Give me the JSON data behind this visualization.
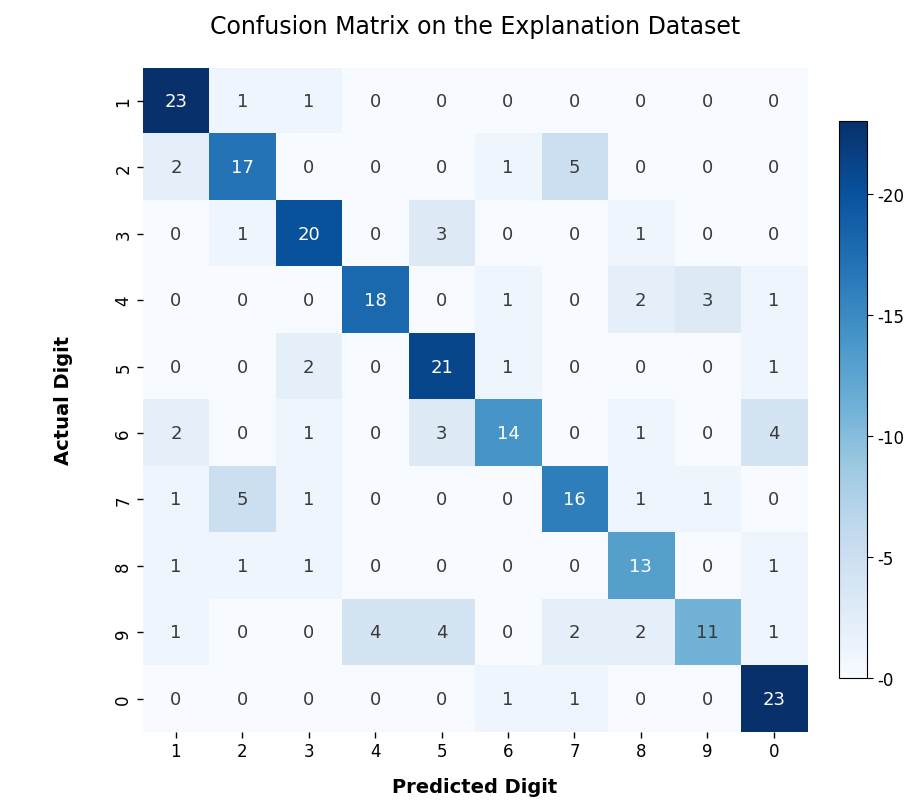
{
  "title": "Confusion Matrix on the Explanation Dataset",
  "xlabel": "Predicted Digit",
  "ylabel": "Actual Digit",
  "tick_labels": [
    "1",
    "2",
    "3",
    "4",
    "5",
    "6",
    "7",
    "8",
    "9",
    "0"
  ],
  "matrix": [
    [
      23,
      1,
      1,
      0,
      0,
      0,
      0,
      0,
      0,
      0
    ],
    [
      2,
      17,
      0,
      0,
      0,
      1,
      5,
      0,
      0,
      0
    ],
    [
      0,
      1,
      20,
      0,
      3,
      0,
      0,
      1,
      0,
      0
    ],
    [
      0,
      0,
      0,
      18,
      0,
      1,
      0,
      2,
      3,
      1
    ],
    [
      0,
      0,
      2,
      0,
      21,
      1,
      0,
      0,
      0,
      1
    ],
    [
      2,
      0,
      1,
      0,
      3,
      14,
      0,
      1,
      0,
      4
    ],
    [
      1,
      5,
      1,
      0,
      0,
      0,
      16,
      1,
      1,
      0
    ],
    [
      1,
      1,
      1,
      0,
      0,
      0,
      0,
      13,
      0,
      1
    ],
    [
      1,
      0,
      0,
      4,
      4,
      0,
      2,
      2,
      11,
      1
    ],
    [
      0,
      0,
      0,
      0,
      0,
      1,
      1,
      0,
      0,
      23
    ]
  ],
  "cmap": "Blues",
  "colorbar_ticks": [
    0,
    5,
    10,
    15,
    20
  ],
  "vmin": 0,
  "vmax": 23,
  "title_fontsize": 17,
  "label_fontsize": 14,
  "tick_fontsize": 12,
  "cell_fontsize": 13,
  "figsize": [
    9.19,
    8.12
  ],
  "dpi": 100,
  "background_color": "#ffffff",
  "text_dark_color": "#3a3a3a",
  "text_light_color": "#ffffff",
  "threshold": 12
}
